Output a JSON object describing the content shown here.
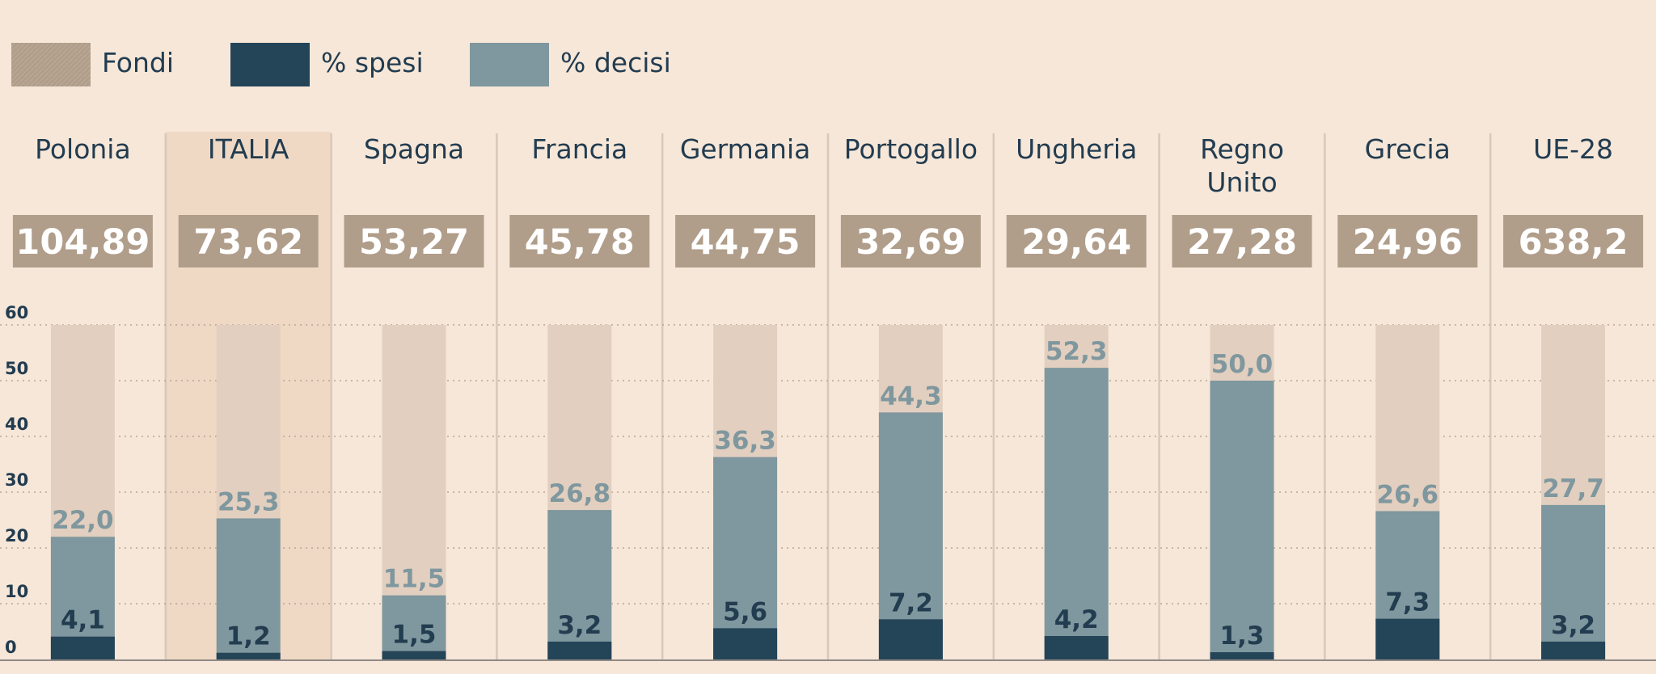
{
  "chart_data": {
    "type": "bar",
    "legend": [
      {
        "name": "Fondi",
        "color": "#b09d8a"
      },
      {
        "name": "% spesi",
        "color": "#244458"
      },
      {
        "name": "% decisi",
        "color": "#7f979e"
      }
    ],
    "categories": [
      "Polonia",
      "ITALIA",
      "Spagna",
      "Francia",
      "Germania",
      "Portogallo",
      "Ungheria",
      "Regno Unito",
      "Grecia",
      "UE-28"
    ],
    "highlight_category": "ITALIA",
    "series": [
      {
        "name": "Fondi",
        "values": [
          "104,89",
          "73,62",
          "53,27",
          "45,78",
          "44,75",
          "32,69",
          "29,64",
          "27,28",
          "24,96",
          "638,2"
        ]
      },
      {
        "name": "% decisi",
        "values": [
          22.0,
          25.3,
          11.5,
          26.8,
          36.3,
          44.3,
          52.3,
          50.0,
          26.6,
          27.7
        ]
      },
      {
        "name": "% spesi",
        "values": [
          4.1,
          1.2,
          1.5,
          3.2,
          5.6,
          7.2,
          4.2,
          1.3,
          7.3,
          3.2
        ]
      }
    ],
    "value_labels": {
      "decisi": [
        "22,0",
        "25,3",
        "11,5",
        "26,8",
        "36,3",
        "44,3",
        "52,3",
        "50,0",
        "26,6",
        "27,7"
      ],
      "spesi": [
        "4,1",
        "1,2",
        "1,5",
        "3,2",
        "5,6",
        "7,2",
        "4,2",
        "1,3",
        "7,3",
        "3,2"
      ]
    },
    "yticks": [
      0,
      10,
      20,
      30,
      40,
      50,
      60
    ],
    "ylim": [
      0,
      60
    ],
    "grid": true,
    "legend_position": "top-left",
    "colors": {
      "background": "#f7e7d8",
      "highlight": "#efd9c4",
      "track": "#e2cfbf",
      "fondi_box": "#b09d8a",
      "decisi": "#7f979e",
      "spesi": "#244458",
      "separator": "#d9c8b9",
      "text": "#223c50"
    }
  }
}
